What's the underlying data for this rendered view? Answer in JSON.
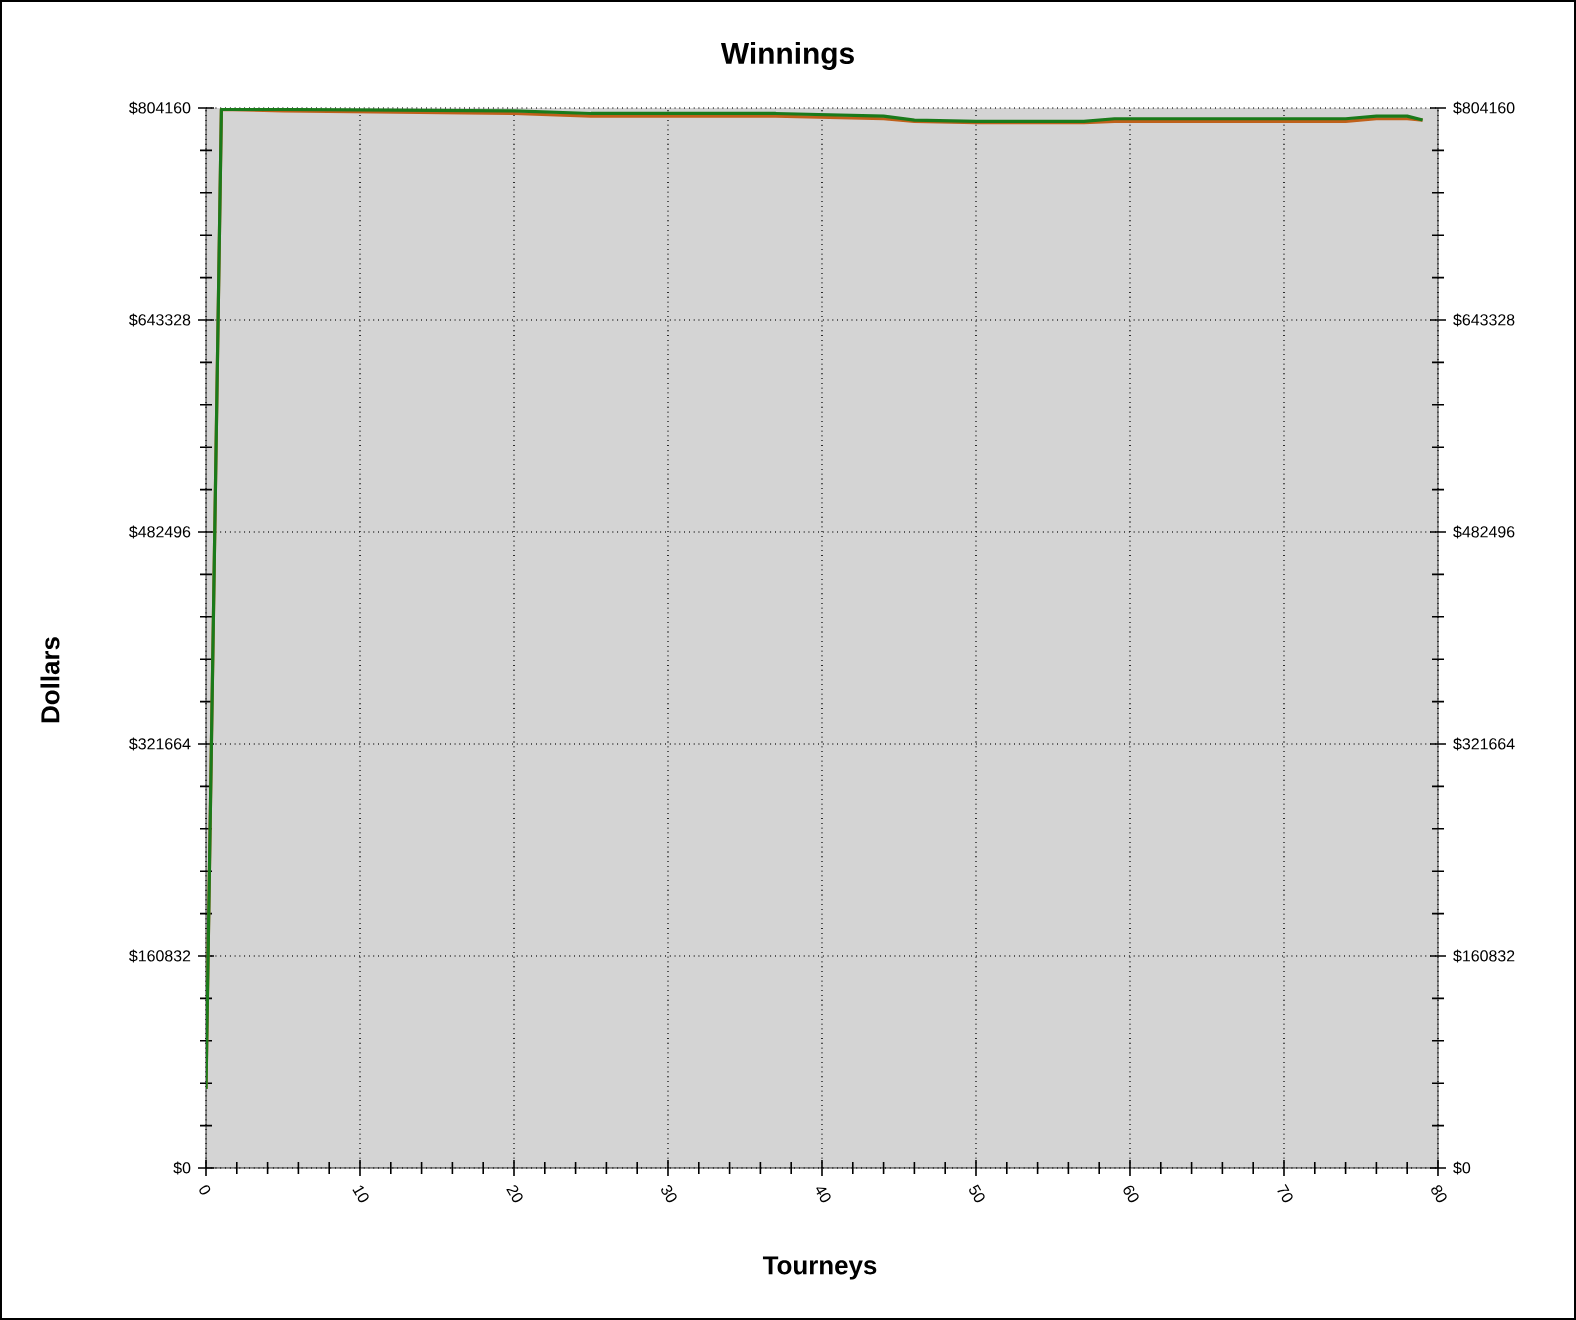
{
  "chart_data": {
    "type": "line",
    "title": "Winnings",
    "xlabel": "Tourneys",
    "ylabel": "Dollars",
    "xlim": [
      0,
      80
    ],
    "xticks": [
      0,
      10,
      20,
      30,
      40,
      50,
      60,
      70,
      80
    ],
    "ylim": [
      0,
      804160
    ],
    "yticks": [
      {
        "value": 0,
        "label": "$0"
      },
      {
        "value": 160832,
        "label": "$160832"
      },
      {
        "value": 321664,
        "label": "$321664"
      },
      {
        "value": 482496,
        "label": "$482496"
      },
      {
        "value": 643328,
        "label": "$643328"
      },
      {
        "value": 804160,
        "label": "$804160"
      }
    ],
    "y2lim": [
      0,
      804160
    ],
    "y2ticks": [
      {
        "value": 0,
        "label": "$0"
      },
      {
        "value": 160832,
        "label": "$160832"
      },
      {
        "value": 321664,
        "label": "$321664"
      },
      {
        "value": 482496,
        "label": "$482496"
      },
      {
        "value": 643328,
        "label": "$643328"
      },
      {
        "value": 804160,
        "label": "$804160"
      }
    ],
    "grid": true,
    "series": [
      {
        "color": "#c0601a",
        "x": [
          0,
          1,
          5,
          20,
          25,
          37,
          44,
          46,
          50,
          57,
          59,
          74,
          76,
          78,
          79
        ],
        "values": [
          60000,
          803000,
          802000,
          800000,
          798000,
          798000,
          796000,
          794000,
          793000,
          793000,
          794000,
          794000,
          796000,
          796000,
          795000
        ]
      },
      {
        "color": "#1a7a1a",
        "x": [
          0,
          1,
          5,
          20,
          25,
          37,
          44,
          46,
          50,
          57,
          59,
          74,
          76,
          78,
          79
        ],
        "values": [
          60000,
          803000,
          803000,
          802000,
          800000,
          800000,
          798000,
          795000,
          794000,
          794000,
          796000,
          796000,
          798000,
          798000,
          795000
        ]
      }
    ]
  }
}
